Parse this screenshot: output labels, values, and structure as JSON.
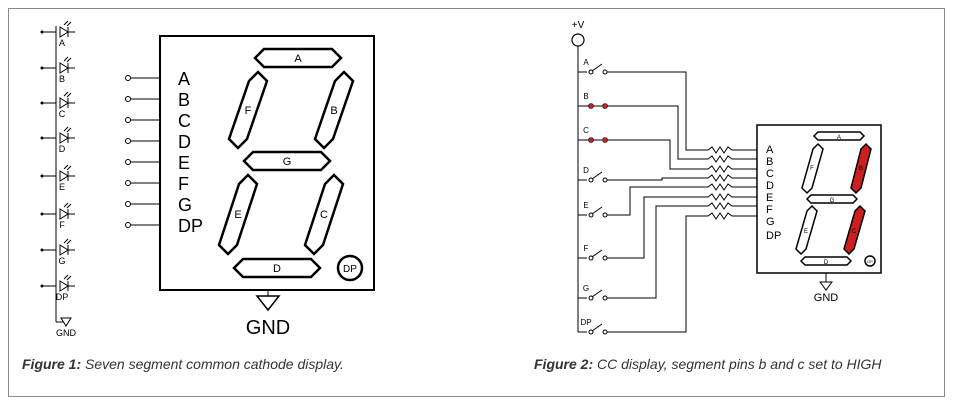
{
  "fig1": {
    "led_labels": [
      "A",
      "B",
      "C",
      "D",
      "E",
      "F",
      "G",
      "DP"
    ],
    "gnd_small": "GND",
    "pin_labels": [
      "A",
      "B",
      "C",
      "D",
      "E",
      "F",
      "G",
      "DP"
    ],
    "segments": [
      "A",
      "B",
      "C",
      "D",
      "E",
      "F",
      "G"
    ],
    "dp": "DP",
    "gnd": "GND",
    "caption_bold": "Figure 1:",
    "caption_text": " Seven segment common cathode display."
  },
  "fig2": {
    "supply": "+V",
    "switch_labels": [
      "A",
      "B",
      "C",
      "D",
      "E",
      "F",
      "G",
      "DP"
    ],
    "pin_labels": [
      "A",
      "B",
      "C",
      "D",
      "E",
      "F",
      "G",
      "DP"
    ],
    "segments": [
      "A",
      "B",
      "C",
      "D",
      "E",
      "F",
      "G"
    ],
    "dp": "DP",
    "gnd": "GND",
    "active_segments": [
      "B",
      "C"
    ],
    "active_color": "#cc2020",
    "caption_bold": "Figure 2:",
    "caption_text": " CC display, segment pins b and c set to HIGH"
  }
}
